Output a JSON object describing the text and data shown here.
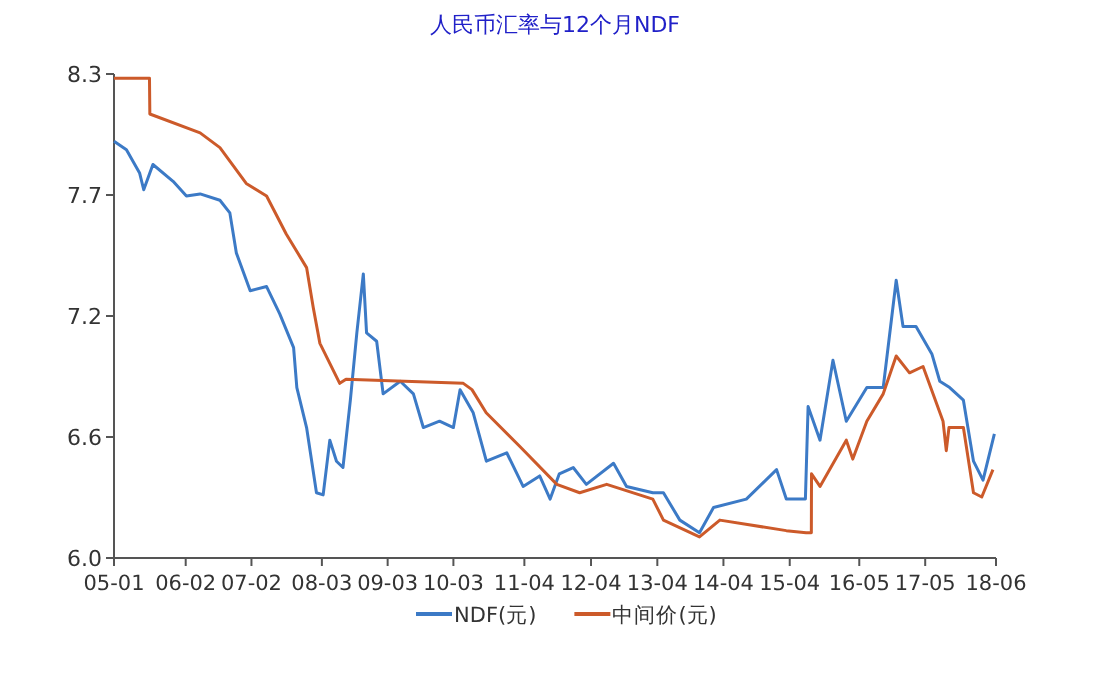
{
  "chart_data": {
    "type": "line",
    "title": "人民币汇率与12个月NDF",
    "xlim": [
      "2005-01-04",
      "2018-06-01"
    ],
    "xticks": [
      {
        "value": "2005-01-04",
        "label": "05-01"
      },
      {
        "value": "2006-02-06",
        "label": "06-02"
      },
      {
        "value": "2007-02-06",
        "label": "07-02"
      },
      {
        "value": "2008-03-03",
        "label": "08-03"
      },
      {
        "value": "2009-03-03",
        "label": "09-03"
      },
      {
        "value": "2010-03-03",
        "label": "10-03"
      },
      {
        "value": "2011-04-01",
        "label": "11-04"
      },
      {
        "value": "2012-04-05",
        "label": "12-04"
      },
      {
        "value": "2013-04-08",
        "label": "13-04"
      },
      {
        "value": "2014-04-10",
        "label": "14-04"
      },
      {
        "value": "2015-04-13",
        "label": "15-04"
      },
      {
        "value": "2016-05-03",
        "label": "16-05"
      },
      {
        "value": "2017-05-04",
        "label": "17-05"
      },
      {
        "value": "2018-06-01",
        "label": "18-06"
      }
    ],
    "ylim": [
      6.0,
      8.3
    ],
    "yticks": [
      {
        "value": 6.0,
        "label": "6.0"
      },
      {
        "value": 6.575,
        "label": "6.6"
      },
      {
        "value": 7.15,
        "label": "7.2"
      },
      {
        "value": 7.725,
        "label": "7.7"
      },
      8.3
    ],
    "legend": "bottom",
    "grid": false,
    "series": [
      {
        "name": "NDF(元)",
        "color": "#3c7ac6",
        "x": [
          "2005-01-04",
          "2005-03-14",
          "2005-05-26",
          "2005-06-18",
          "2005-08-08",
          "2005-11-28",
          "2006-02-10",
          "2006-04-27",
          "2006-08-15",
          "2006-10-09",
          "2006-11-14",
          "2007-01-30",
          "2007-05-01",
          "2007-07-13",
          "2007-09-28",
          "2007-10-16",
          "2007-12-09",
          "2008-02-02",
          "2008-03-10",
          "2008-04-16",
          "2008-05-23",
          "2008-06-28",
          "2008-08-08",
          "2008-09-13",
          "2008-10-19",
          "2008-11-06",
          "2009-01-01",
          "2009-02-06",
          "2009-05-12",
          "2009-07-24",
          "2009-09-17",
          "2009-12-16",
          "2010-03-03",
          "2010-04-09",
          "2010-06-21",
          "2010-09-02",
          "2010-12-24",
          "2011-03-25",
          "2011-06-25",
          "2011-08-22",
          "2011-10-12",
          "2011-12-28",
          "2012-03-10",
          "2012-08-08",
          "2012-10-19",
          "2013-03-14",
          "2013-05-12",
          "2013-08-11",
          "2013-11-28",
          "2014-02-14",
          "2014-08-15",
          "2015-01-30",
          "2015-03-25",
          "2015-07-09",
          "2015-07-24",
          "2015-09-28",
          "2015-12-09",
          "2016-02-21",
          "2016-06-14",
          "2016-09-13",
          "2016-11-24",
          "2017-01-01",
          "2017-03-14",
          "2017-06-10",
          "2017-07-24",
          "2017-09-17",
          "2017-12-02",
          "2018-01-27",
          "2018-03-21",
          "2018-05-23"
        ],
        "values": [
          7.98,
          7.94,
          7.83,
          7.75,
          7.87,
          7.79,
          7.72,
          7.73,
          7.7,
          7.64,
          7.45,
          7.27,
          7.29,
          7.16,
          7.0,
          6.81,
          6.62,
          6.31,
          6.3,
          6.56,
          6.46,
          6.43,
          6.75,
          7.07,
          7.35,
          7.07,
          7.03,
          6.78,
          6.84,
          6.78,
          6.62,
          6.65,
          6.62,
          6.8,
          6.69,
          6.46,
          6.5,
          6.34,
          6.39,
          6.28,
          6.4,
          6.43,
          6.35,
          6.45,
          6.34,
          6.31,
          6.31,
          6.18,
          6.12,
          6.24,
          6.28,
          6.42,
          6.28,
          6.28,
          6.72,
          6.56,
          6.94,
          6.65,
          6.81,
          6.81,
          7.32,
          7.1,
          7.1,
          6.97,
          6.84,
          6.81,
          6.75,
          6.46,
          6.37,
          6.59
        ]
      },
      {
        "name": "中间价(元)",
        "color": "#cc5a2a",
        "x": [
          "2005-01-04",
          "2005-07-20",
          "2005-07-22",
          "2006-04-27",
          "2006-08-15",
          "2007-01-08",
          "2007-05-01",
          "2007-08-18",
          "2007-12-09",
          "2008-01-15",
          "2008-02-21",
          "2008-06-10",
          "2008-07-15",
          "2010-04-27",
          "2010-06-14",
          "2010-09-01",
          "2011-03-07",
          "2011-09-28",
          "2012-02-02",
          "2012-07-01",
          "2013-03-14",
          "2013-05-12",
          "2013-11-28",
          "2014-03-21",
          "2015-03-25",
          "2015-07-13",
          "2015-08-11",
          "2015-08-12",
          "2015-09-28",
          "2016-02-21",
          "2016-03-28",
          "2016-06-14",
          "2016-09-13",
          "2016-11-24",
          "2017-02-06",
          "2017-04-22",
          "2017-08-11",
          "2017-08-29",
          "2017-09-13",
          "2017-12-02",
          "2018-01-27",
          "2018-03-14",
          "2018-05-15"
        ],
        "values": [
          8.28,
          8.28,
          8.11,
          8.02,
          7.95,
          7.78,
          7.72,
          7.54,
          7.38,
          7.19,
          7.02,
          6.83,
          6.85,
          6.83,
          6.8,
          6.69,
          6.53,
          6.35,
          6.31,
          6.35,
          6.28,
          6.18,
          6.1,
          6.18,
          6.13,
          6.12,
          6.12,
          6.4,
          6.34,
          6.56,
          6.47,
          6.65,
          6.78,
          6.96,
          6.88,
          6.91,
          6.65,
          6.51,
          6.62,
          6.62,
          6.31,
          6.29,
          6.42
        ]
      }
    ]
  }
}
